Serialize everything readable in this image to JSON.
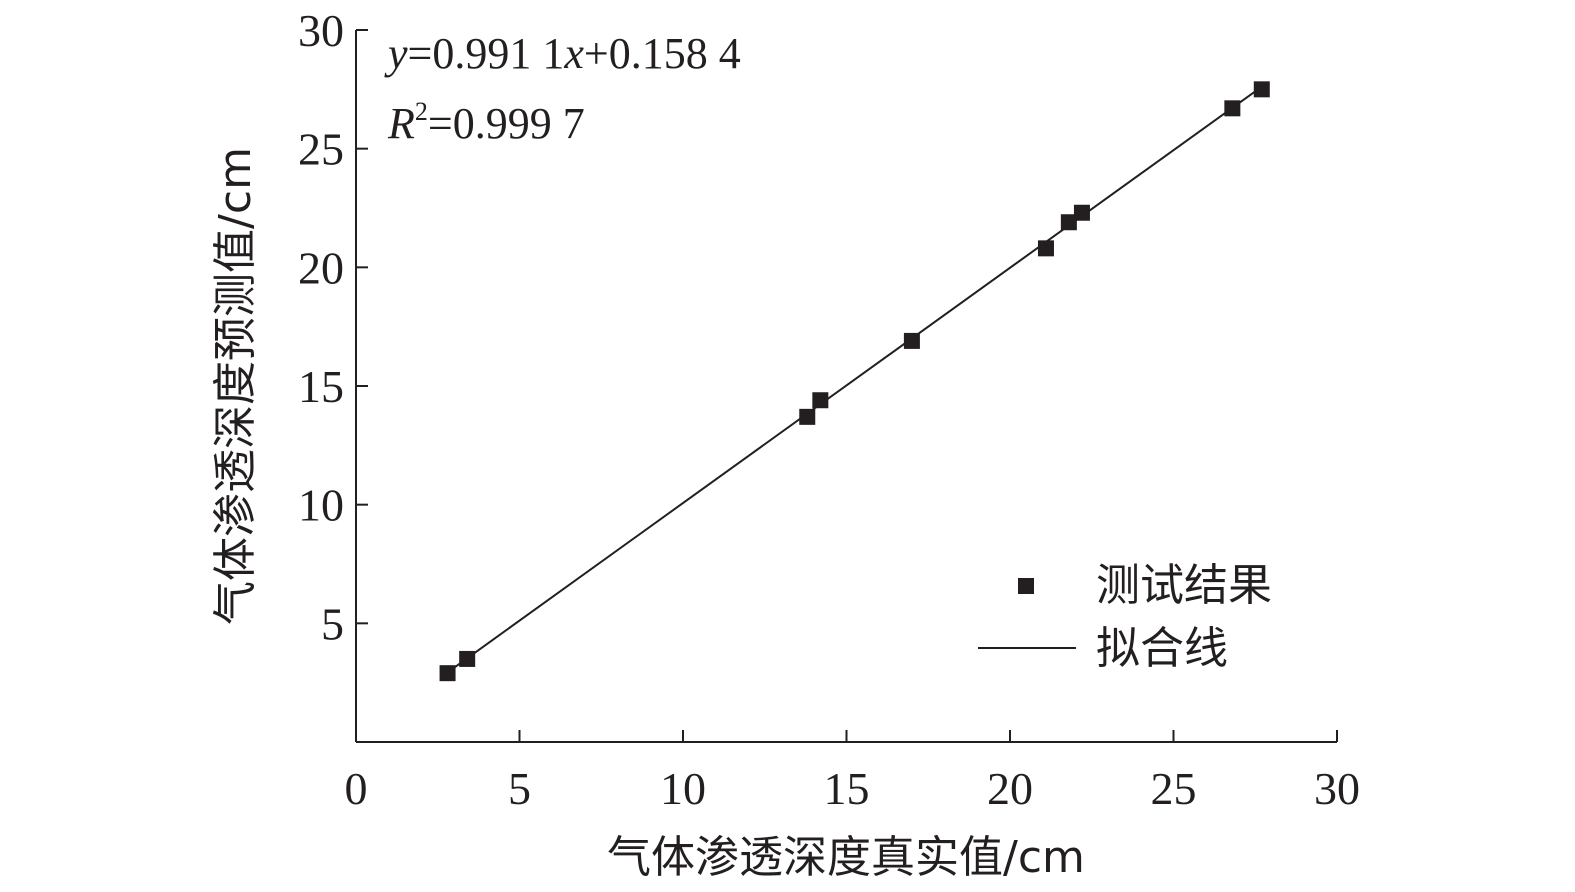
{
  "chart_data": {
    "type": "scatter",
    "xlabel": "气体渗透深度真实值/cm",
    "ylabel": "气体渗透深度预测值/cm",
    "xlim": [
      0,
      30
    ],
    "ylim": [
      0,
      30
    ],
    "x_ticks": [
      "0",
      "5",
      "10",
      "15",
      "20",
      "25",
      "30"
    ],
    "y_ticks": [
      "5",
      "10",
      "15",
      "20",
      "25",
      "30"
    ],
    "grid": false,
    "legend_position": "bottom-right",
    "annotations": {
      "equation": {
        "y_var": "y",
        "eq_mid": "=0.991 1",
        "x_var": "x",
        "eq_end": "+0.158 4"
      },
      "r_squared": {
        "var": "R",
        "sup": "2",
        "value": "=0.999 7"
      }
    },
    "series": [
      {
        "name": "测试结果",
        "kind": "scatter",
        "x": [
          2.8,
          3.4,
          13.8,
          14.2,
          17.0,
          21.1,
          21.8,
          22.2,
          26.8,
          27.7
        ],
        "y": [
          2.9,
          3.5,
          13.7,
          14.4,
          16.9,
          20.8,
          21.9,
          22.3,
          26.7,
          27.5
        ]
      },
      {
        "name": "拟合线",
        "kind": "line",
        "slope": 0.9911,
        "intercept": 0.1584,
        "x_range": [
          2.8,
          27.7
        ]
      }
    ]
  }
}
